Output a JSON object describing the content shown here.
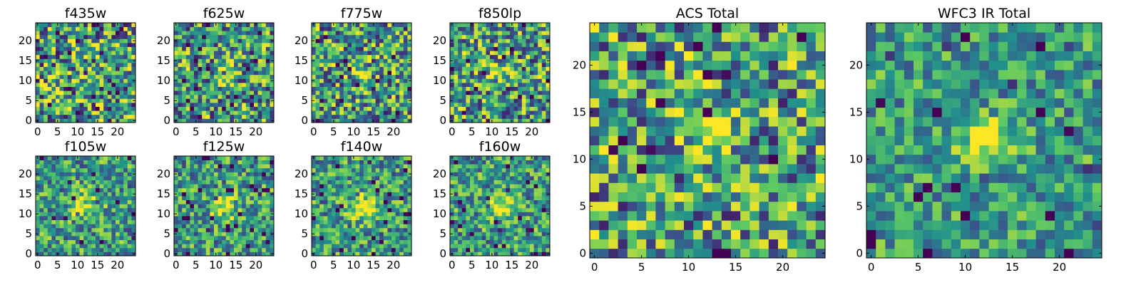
{
  "colormap": [
    "#440154",
    "#3b528b",
    "#21918c",
    "#5ec962",
    "#fde725"
  ],
  "chart_data": [
    {
      "type": "heatmap",
      "title": "f435w",
      "grid": 25,
      "xticks": [
        0,
        5,
        10,
        15,
        20
      ],
      "yticks": [
        0,
        5,
        10,
        15,
        20
      ],
      "xlim": [
        0,
        24
      ],
      "ylim": [
        0,
        24
      ],
      "seed": 11,
      "peak": {
        "x": 12,
        "y": 12,
        "amp": 0.0,
        "sigma": 2.0
      },
      "noise": 0.5
    },
    {
      "type": "heatmap",
      "title": "f625w",
      "grid": 25,
      "xticks": [
        0,
        5,
        10,
        15,
        20
      ],
      "yticks": [
        0,
        5,
        10,
        15,
        20
      ],
      "xlim": [
        0,
        24
      ],
      "ylim": [
        0,
        24
      ],
      "seed": 23,
      "peak": {
        "x": 12,
        "y": 12,
        "amp": 0.35,
        "sigma": 1.6
      },
      "noise": 0.45
    },
    {
      "type": "heatmap",
      "title": "f775w",
      "grid": 25,
      "xticks": [
        0,
        5,
        10,
        15,
        20
      ],
      "yticks": [
        0,
        5,
        10,
        15,
        20
      ],
      "xlim": [
        0,
        24
      ],
      "ylim": [
        0,
        24
      ],
      "seed": 37,
      "peak": {
        "x": 12,
        "y": 12,
        "amp": 0.35,
        "sigma": 1.6
      },
      "noise": 0.45
    },
    {
      "type": "heatmap",
      "title": "f850lp",
      "grid": 25,
      "xticks": [
        0,
        5,
        10,
        15,
        20
      ],
      "yticks": [
        0,
        5,
        10,
        15,
        20
      ],
      "xlim": [
        0,
        24
      ],
      "ylim": [
        0,
        24
      ],
      "seed": 41,
      "peak": {
        "x": 12,
        "y": 12,
        "amp": 0.35,
        "sigma": 1.6
      },
      "noise": 0.45
    },
    {
      "type": "heatmap",
      "title": "f105w",
      "grid": 25,
      "xticks": [
        0,
        5,
        10,
        15,
        20
      ],
      "yticks": [
        0,
        5,
        10,
        15,
        20
      ],
      "xlim": [
        0,
        24
      ],
      "ylim": [
        0,
        24
      ],
      "seed": 53,
      "peak": {
        "x": 12,
        "y": 12,
        "amp": 0.35,
        "sigma": 2.5
      },
      "noise": 0.35
    },
    {
      "type": "heatmap",
      "title": "f125w",
      "grid": 25,
      "xticks": [
        0,
        5,
        10,
        15,
        20
      ],
      "yticks": [
        0,
        5,
        10,
        15,
        20
      ],
      "xlim": [
        0,
        24
      ],
      "ylim": [
        0,
        24
      ],
      "seed": 67,
      "peak": {
        "x": 12,
        "y": 12,
        "amp": 0.5,
        "sigma": 2.0
      },
      "noise": 0.35
    },
    {
      "type": "heatmap",
      "title": "f140w",
      "grid": 25,
      "xticks": [
        0,
        5,
        10,
        15,
        20
      ],
      "yticks": [
        0,
        5,
        10,
        15,
        20
      ],
      "xlim": [
        0,
        24
      ],
      "ylim": [
        0,
        24
      ],
      "seed": 71,
      "peak": {
        "x": 12,
        "y": 12,
        "amp": 0.45,
        "sigma": 2.2
      },
      "noise": 0.35
    },
    {
      "type": "heatmap",
      "title": "f160w",
      "grid": 25,
      "xticks": [
        0,
        5,
        10,
        15,
        20
      ],
      "yticks": [
        0,
        5,
        10,
        15,
        20
      ],
      "xlim": [
        0,
        24
      ],
      "ylim": [
        0,
        24
      ],
      "seed": 83,
      "peak": {
        "x": 12,
        "y": 12,
        "amp": 0.5,
        "sigma": 2.0
      },
      "noise": 0.35
    },
    {
      "type": "heatmap",
      "title": "ACS Total",
      "grid": 25,
      "xticks": [
        0,
        5,
        10,
        15,
        20
      ],
      "yticks": [
        0,
        5,
        10,
        15,
        20
      ],
      "xlim": [
        0,
        24
      ],
      "ylim": [
        0,
        24
      ],
      "seed": 97,
      "peak": {
        "x": 12,
        "y": 12,
        "amp": 0.5,
        "sigma": 1.5
      },
      "noise": 0.45
    },
    {
      "type": "heatmap",
      "title": "WFC3 IR Total",
      "grid": 25,
      "xticks": [
        0,
        5,
        10,
        15,
        20
      ],
      "yticks": [
        0,
        5,
        10,
        15,
        20
      ],
      "xlim": [
        0,
        24
      ],
      "ylim": [
        0,
        24
      ],
      "seed": 101,
      "peak": {
        "x": 12,
        "y": 12,
        "amp": 0.6,
        "sigma": 1.6
      },
      "noise": 0.3
    }
  ]
}
